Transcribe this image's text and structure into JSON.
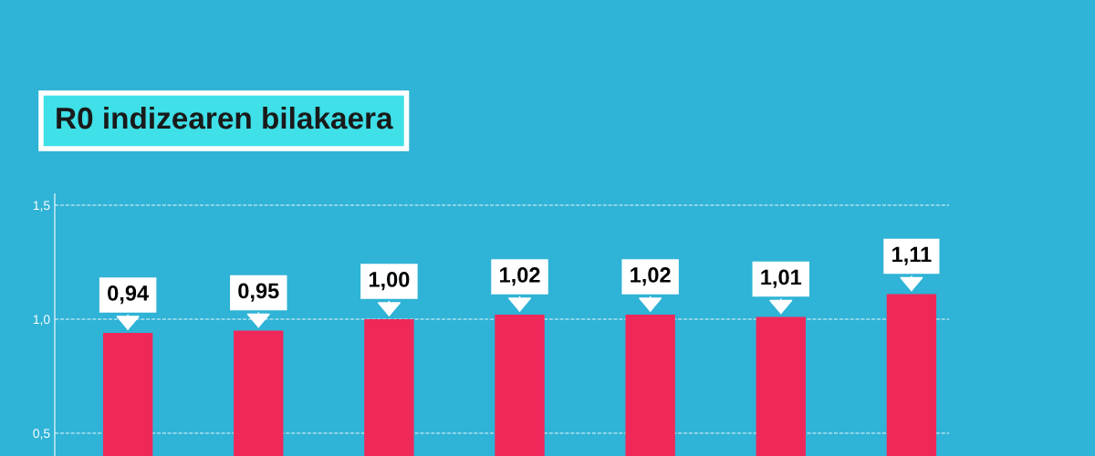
{
  "chart_data": {
    "type": "bar",
    "title": "R0 indizearen bilakaera",
    "categories": [
      null,
      null,
      null,
      null,
      null,
      null,
      null
    ],
    "values": [
      0.94,
      0.95,
      1.0,
      1.02,
      1.02,
      1.01,
      1.11
    ],
    "value_labels": [
      "0,94",
      "0,95",
      "1,00",
      "1,02",
      "1,02",
      "1,01",
      "1,11"
    ],
    "color": "#f0285a",
    "ylim": [
      0.4,
      2.4
    ],
    "yticks": [
      {
        "value": 0.5,
        "label": "0,5"
      },
      {
        "value": 1.0,
        "label": "1,0"
      },
      {
        "value": 1.5,
        "label": "1,5"
      }
    ],
    "grid": "y",
    "line_style": "dashed",
    "legend": false
  }
}
